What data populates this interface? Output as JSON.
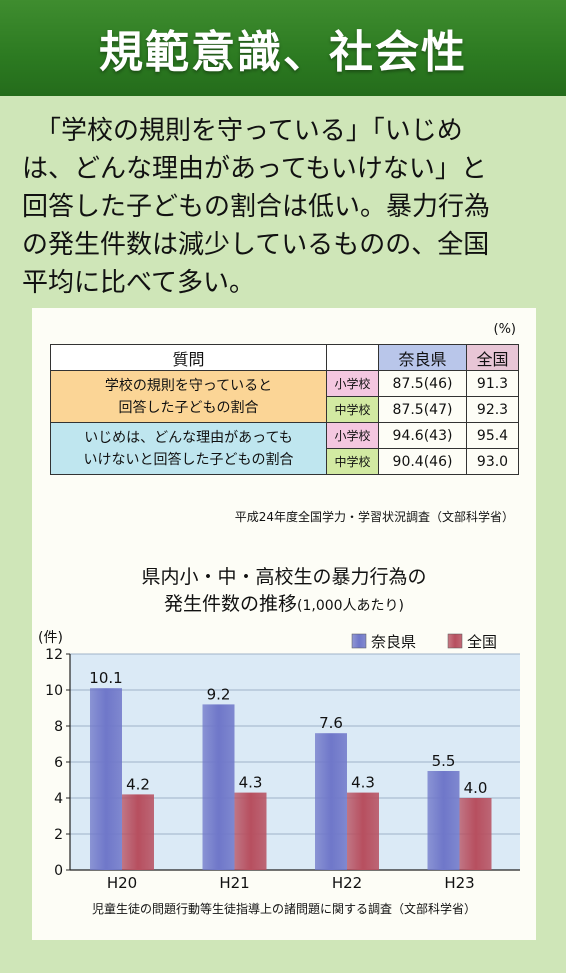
{
  "header": {
    "title": "規範意識、社会性"
  },
  "intro": {
    "lines": [
      "　「学校の規則を守っている」「いじめ",
      "は、どんな理由があってもいけない」と",
      "回答した子どもの割合は低い。暴力行為",
      "の発生件数は減少しているものの、全国",
      "平均に比べて多い。"
    ]
  },
  "survey_table": {
    "unit": "(%)",
    "headers": {
      "question": "質問",
      "nara": "奈良県",
      "national": "全国"
    },
    "rows": [
      {
        "question": "学校の規則を守っていると回答した子どもの割合",
        "question_lines": [
          "学校の規則を守っていると",
          "回答した子どもの割合"
        ],
        "elementary": {
          "level": "小学校",
          "nara": "87.5(46)",
          "national": "91.3"
        },
        "junior_high": {
          "level": "中学校",
          "nara": "87.5(47)",
          "national": "92.3"
        }
      },
      {
        "question": "いじめは、どんな理由があってもいけないと回答した子どもの割合",
        "question_lines": [
          "いじめは、どんな理由があっても",
          "いけないと回答した子どもの割合"
        ],
        "elementary": {
          "level": "小学校",
          "nara": "94.6(43)",
          "national": "95.4"
        },
        "junior_high": {
          "level": "中学校",
          "nara": "90.4(46)",
          "national": "93.0"
        }
      }
    ],
    "source": "平成24年度全国学力・学習状況調査（文部科学省）"
  },
  "chart_data": {
    "type": "bar",
    "title_line1": "県内小・中・高校生の暴力行為の",
    "title_line2": "発生件数の推移",
    "title_note": "(1,000人あたり)",
    "ylabel": "(件)",
    "ylim": [
      0,
      12
    ],
    "yticks": [
      "0",
      "2",
      "4",
      "6",
      "8",
      "10",
      "12"
    ],
    "categories": [
      "H20",
      "H21",
      "H22",
      "H23"
    ],
    "series": [
      {
        "name": "奈良県",
        "values": [
          10.1,
          9.2,
          7.6,
          5.5
        ],
        "labels": [
          "10.1",
          "9.2",
          "7.6",
          "5.5"
        ],
        "color": "#6f77c9"
      },
      {
        "name": "全国",
        "values": [
          4.2,
          4.3,
          4.3,
          4.0
        ],
        "labels": [
          "4.2",
          "4.3",
          "4.3",
          "4.0"
        ],
        "color": "#b74f5f"
      }
    ],
    "legend_position": "top-right",
    "grid": true,
    "source": "児童生徒の問題行動等生徒指導上の諸問題に関する調査（文部科学省）"
  }
}
